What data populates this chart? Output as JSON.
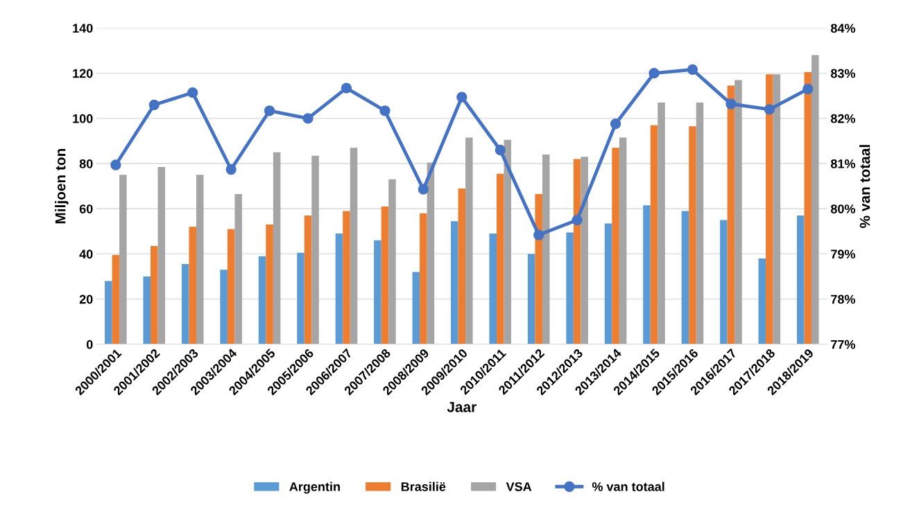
{
  "chart_data": {
    "type": "bar",
    "xlabel": "Jaar",
    "ylabel": "Miljoen ton",
    "y2label": "% van totaal",
    "categories": [
      "2000/2001",
      "2001/2002",
      "2002/2003",
      "2003/2004",
      "2004/2005",
      "2005/2006",
      "2006/2007",
      "2007/2008",
      "2008/2009",
      "2009/2010",
      "2010/2011",
      "2011/2012",
      "2012/2013",
      "2013/2014",
      "2014/2015",
      "2015/2016",
      "2016/2017",
      "2017/2018",
      "2018/2019"
    ],
    "series": [
      {
        "name": "Argentin",
        "color": "#5b9bd5",
        "values": [
          28,
          30,
          35.5,
          33,
          39,
          40.5,
          49,
          46,
          32,
          54.5,
          49,
          40,
          49.5,
          53.5,
          61.5,
          59,
          55,
          38,
          57
        ]
      },
      {
        "name": "Brasilië",
        "color": "#ed7d31",
        "values": [
          39.5,
          43.5,
          52,
          51,
          53,
          57,
          59,
          61,
          58,
          69,
          75.5,
          66.5,
          82,
          87,
          97,
          96.5,
          114.5,
          119.5,
          120.5
        ]
      },
      {
        "name": "VSA",
        "color": "#a5a5a5",
        "values": [
          75,
          78.5,
          75,
          66.5,
          85,
          83.5,
          87,
          73,
          80.5,
          91.5,
          90.5,
          84,
          83,
          91.5,
          107,
          107,
          117,
          119.5,
          128
        ]
      },
      {
        "name": "% van totaal",
        "type": "line",
        "axis": "y2",
        "color": "#4472c4",
        "values": [
          80.97,
          82.3,
          82.57,
          80.87,
          82.17,
          82.0,
          82.67,
          82.17,
          80.43,
          82.47,
          81.3,
          79.42,
          79.75,
          81.88,
          83.0,
          83.08,
          82.32,
          82.2,
          82.65
        ]
      }
    ],
    "ylim": [
      0,
      140
    ],
    "yticks": [
      0,
      20,
      40,
      60,
      80,
      100,
      120,
      140
    ],
    "y2lim": [
      77,
      84
    ],
    "y2ticks": [
      {
        "value": 77,
        "label": "77%"
      },
      {
        "value": 78,
        "label": "78%"
      },
      {
        "value": 79,
        "label": "79%"
      },
      {
        "value": 80,
        "label": "80%"
      },
      {
        "value": 81,
        "label": "81%"
      },
      {
        "value": 82,
        "label": "82%"
      },
      {
        "value": 83,
        "label": "83%"
      },
      {
        "value": 84,
        "label": "84%"
      }
    ],
    "grid": "y",
    "legend": "bottom",
    "marker": "circle"
  }
}
